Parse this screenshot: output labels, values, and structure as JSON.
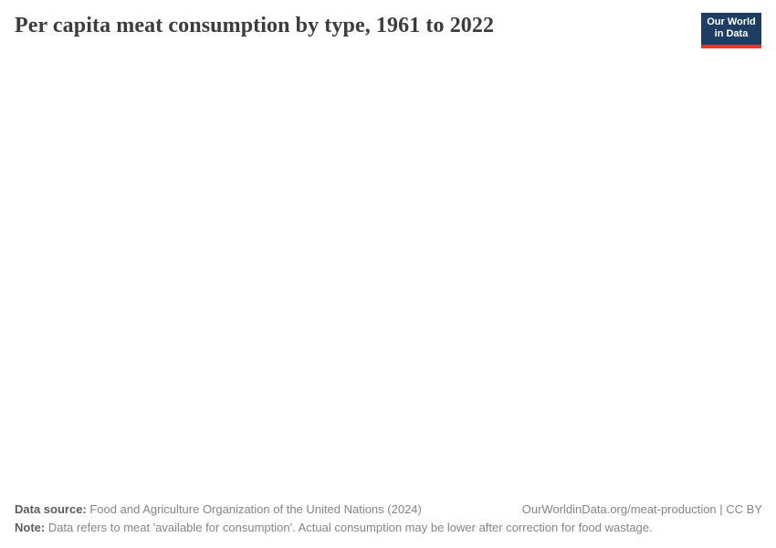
{
  "header": {
    "title": "Per capita meat consumption by type, 1961 to 2022",
    "logo": {
      "line1": "Our World",
      "line2": "in Data",
      "bg_color": "#1d3d63",
      "accent_color": "#e6392f"
    }
  },
  "chart_data": {
    "type": "line",
    "title": "Per capita meat consumption by type, 1961 to 2022",
    "x_range": [
      1961,
      2022
    ],
    "series": [],
    "plot_area_empty": true
  },
  "footer": {
    "data_source_label": "Data source:",
    "data_source_value": " Food and Agriculture Organization of the United Nations (2024)",
    "attribution": "OurWorldinData.org/meat-production | CC BY",
    "note_label": "Note:",
    "note_value": " Data refers to meat 'available for consumption'. Actual consumption may be lower after correction for food wastage."
  }
}
